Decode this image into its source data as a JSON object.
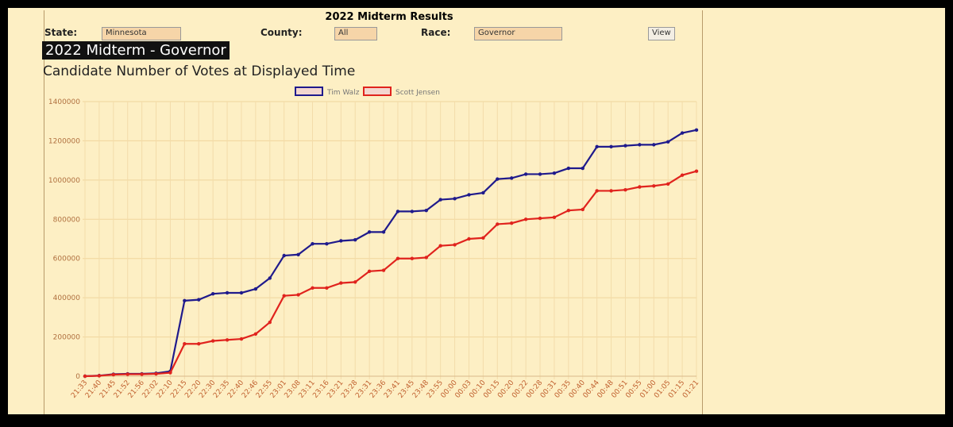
{
  "header": {
    "title": "2022 Midterm Results"
  },
  "form": {
    "state_label": "State:",
    "state_value": "Minnesota",
    "county_label": "County:",
    "county_value": "All",
    "race_label": "Race:",
    "race_value": "Governor",
    "button": "View"
  },
  "chart_data": {
    "type": "line",
    "title": "2022 Midterm - Governor",
    "subtitle": "Candidate Number of Votes at Displayed Time",
    "categories": [
      "21:33",
      "21:40",
      "21:45",
      "21:52",
      "21:56",
      "22:02",
      "22:10",
      "22:15",
      "22:20",
      "22:30",
      "22:35",
      "22:40",
      "22:46",
      "22:55",
      "23:01",
      "23:08",
      "23:11",
      "23:16",
      "23:21",
      "23:28",
      "23:31",
      "23:36",
      "23:41",
      "23:45",
      "23:48",
      "23:55",
      "00:00",
      "00:03",
      "00:10",
      "00:15",
      "00:20",
      "00:22",
      "00:28",
      "00:31",
      "00:35",
      "00:40",
      "00:44",
      "00:48",
      "00:51",
      "00:55",
      "01:00",
      "01:05",
      "01:15",
      "01:21"
    ],
    "series": [
      {
        "name": "Tim Walz",
        "color": "#1f1a8c",
        "values": [
          0,
          3000,
          10000,
          12000,
          12000,
          15000,
          25000,
          385000,
          390000,
          420000,
          425000,
          425000,
          445000,
          500000,
          615000,
          620000,
          675000,
          675000,
          690000,
          695000,
          735000,
          735000,
          840000,
          840000,
          845000,
          900000,
          905000,
          925000,
          935000,
          1005000,
          1010000,
          1030000,
          1030000,
          1035000,
          1060000,
          1060000,
          1170000,
          1170000,
          1175000,
          1180000,
          1180000,
          1195000,
          1240000,
          1255000
        ]
      },
      {
        "name": "Scott Jensen",
        "color": "#e0231d",
        "values": [
          0,
          2000,
          8000,
          10000,
          10000,
          12000,
          18000,
          165000,
          165000,
          180000,
          185000,
          190000,
          215000,
          275000,
          410000,
          415000,
          450000,
          450000,
          475000,
          480000,
          535000,
          540000,
          600000,
          600000,
          605000,
          665000,
          670000,
          700000,
          705000,
          775000,
          780000,
          800000,
          805000,
          810000,
          845000,
          850000,
          945000,
          945000,
          950000,
          965000,
          970000,
          980000,
          1025000,
          1045000
        ]
      }
    ],
    "ylim": [
      0,
      1400000
    ],
    "yticks": [
      0,
      200000,
      400000,
      600000,
      800000,
      1000000,
      1200000,
      1400000
    ],
    "grid": true
  }
}
